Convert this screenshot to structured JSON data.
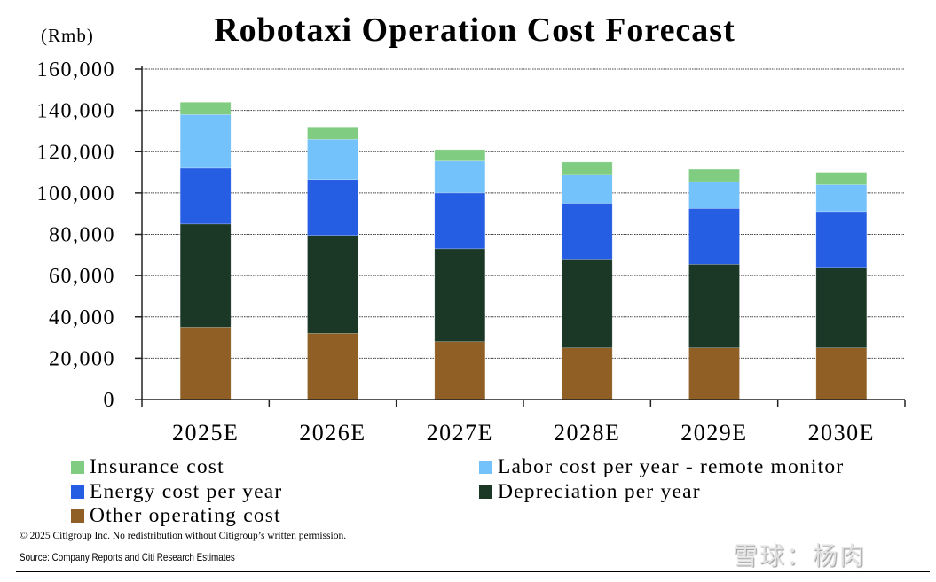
{
  "chart_data": {
    "type": "bar",
    "stacked": true,
    "title": "Robotaxi Operation Cost Forecast",
    "unit_label": "(Rmb)",
    "xlabel": "",
    "ylabel": "(Rmb)",
    "ylim": [
      0,
      160000
    ],
    "yticks": [
      0,
      20000,
      40000,
      60000,
      80000,
      100000,
      120000,
      140000,
      160000
    ],
    "ytick_labels": [
      "0",
      "20,000",
      "40,000",
      "60,000",
      "80,000",
      "100,000",
      "120,000",
      "140,000",
      "160,000"
    ],
    "grid": true,
    "legend_position": "bottom",
    "categories": [
      "2025E",
      "2026E",
      "2027E",
      "2028E",
      "2029E",
      "2030E"
    ],
    "series": [
      {
        "name": "Other operating cost",
        "color": "#8f5f25",
        "values": [
          35000,
          32000,
          28000,
          25000,
          25000,
          25000
        ]
      },
      {
        "name": "Depreciation per year",
        "color": "#1b3826",
        "values": [
          50000,
          47500,
          45000,
          43000,
          40500,
          39000
        ]
      },
      {
        "name": "Energy cost per year",
        "color": "#255de3",
        "values": [
          27000,
          27000,
          27000,
          27000,
          27000,
          27000
        ]
      },
      {
        "name": "Labor cost per year - remote monitor",
        "color": "#74c2fc",
        "values": [
          26000,
          19500,
          15500,
          14000,
          13000,
          13000
        ]
      },
      {
        "name": "Insurance cost",
        "color": "#80cd82",
        "values": [
          6000,
          6000,
          5500,
          6000,
          6000,
          6000
        ]
      }
    ],
    "legend_order": [
      "Insurance cost",
      "Labor cost per year - remote monitor",
      "Energy cost per year",
      "Depreciation per year",
      "Other operating cost"
    ]
  },
  "footer": {
    "copyright": "© 2025 Citigroup Inc. No redistribution without Citigroup’s written permission.",
    "source": "Source: Company Reports and Citi Research Estimates",
    "watermark": "雪球：杨肉"
  }
}
